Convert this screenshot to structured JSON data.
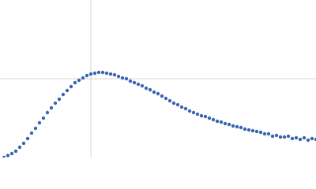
{
  "chart_data": {
    "type": "scatter",
    "color": "#3a66b0",
    "grid": true,
    "xlim": [
      0,
      4
    ],
    "ylim": [
      0,
      2
    ],
    "xticks": [
      1.15
    ],
    "yticks": [
      1
    ],
    "x": [
      0.05,
      0.1,
      0.15,
      0.2,
      0.25,
      0.3,
      0.35,
      0.4,
      0.45,
      0.5,
      0.55,
      0.6,
      0.65,
      0.7,
      0.75,
      0.8,
      0.85,
      0.9,
      0.95,
      1.0,
      1.05,
      1.1,
      1.15,
      1.2,
      1.25,
      1.3,
      1.35,
      1.4,
      1.45,
      1.5,
      1.55,
      1.6,
      1.65,
      1.7,
      1.75,
      1.8,
      1.85,
      1.9,
      1.95,
      2.0,
      2.05,
      2.1,
      2.15,
      2.2,
      2.25,
      2.3,
      2.35,
      2.4,
      2.45,
      2.5,
      2.55,
      2.6,
      2.65,
      2.7,
      2.75,
      2.8,
      2.85,
      2.9,
      2.95,
      3.0,
      3.05,
      3.1,
      3.15,
      3.2,
      3.25,
      3.3,
      3.35,
      3.4,
      3.45,
      3.5,
      3.55,
      3.6,
      3.65,
      3.7,
      3.75,
      3.8,
      3.85,
      3.9,
      3.95,
      4.0
    ],
    "values": [
      0.0,
      0.025,
      0.05,
      0.08,
      0.13,
      0.18,
      0.24,
      0.31,
      0.37,
      0.44,
      0.5,
      0.57,
      0.63,
      0.69,
      0.74,
      0.8,
      0.85,
      0.9,
      0.95,
      0.98,
      1.01,
      1.04,
      1.06,
      1.07,
      1.08,
      1.08,
      1.07,
      1.06,
      1.05,
      1.03,
      1.01,
      1.0,
      0.97,
      0.95,
      0.93,
      0.91,
      0.88,
      0.86,
      0.83,
      0.81,
      0.78,
      0.75,
      0.72,
      0.69,
      0.67,
      0.64,
      0.62,
      0.59,
      0.57,
      0.55,
      0.53,
      0.52,
      0.5,
      0.48,
      0.46,
      0.45,
      0.43,
      0.42,
      0.4,
      0.39,
      0.38,
      0.36,
      0.35,
      0.34,
      0.33,
      0.32,
      0.3,
      0.3,
      0.27,
      0.28,
      0.26,
      0.26,
      0.27,
      0.24,
      0.25,
      0.23,
      0.25,
      0.22,
      0.24,
      0.23
    ]
  }
}
